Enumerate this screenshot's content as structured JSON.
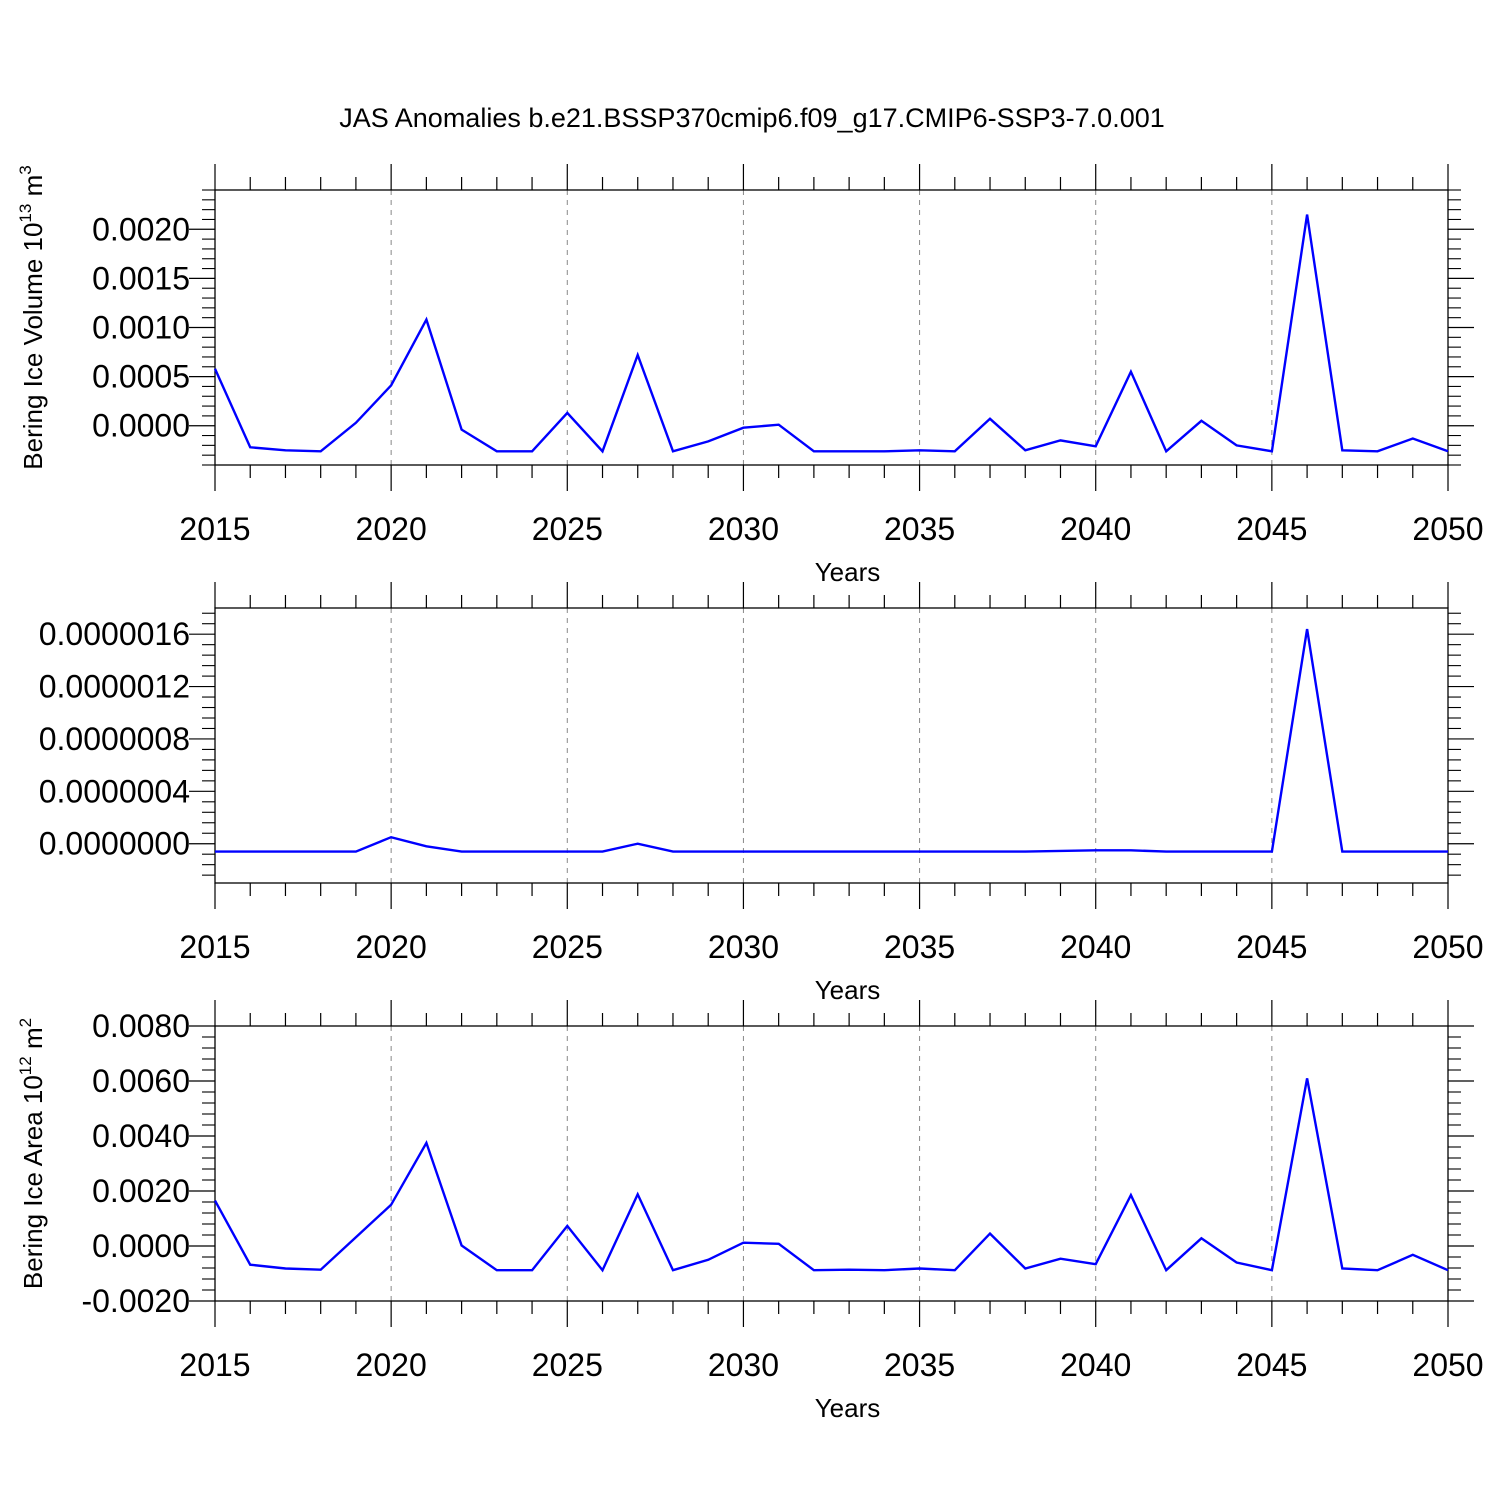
{
  "figure": {
    "title": "JAS Anomalies b.e21.BSSP370cmip6.f09_g17.CMIP6-SSP3-7.0.001"
  },
  "style": {
    "line_color": "#0000ff",
    "grid_color": "#888888",
    "axis_color": "#000000"
  },
  "chart_data": [
    {
      "type": "line",
      "xlabel": "Years",
      "ylabel": {
        "prefix": "Bering Ice Volume 10",
        "exponent": "13",
        "unit": " m",
        "unit_exponent": "3"
      },
      "xlim": [
        2015,
        2050
      ],
      "ylim": [
        -0.0004,
        0.0024
      ],
      "x_ticks": [
        2015,
        2020,
        2025,
        2030,
        2035,
        2040,
        2045,
        2050
      ],
      "x_tick_labels": [
        "2015",
        "2020",
        "2025",
        "2030",
        "2035",
        "2040",
        "2045",
        "2050"
      ],
      "y_ticks": [
        0.0,
        0.0005,
        0.001,
        0.0015,
        0.002
      ],
      "y_tick_labels": [
        "0.0000",
        "0.0005",
        "0.0010",
        "0.0015",
        "0.0020"
      ],
      "grid": "vertical dashed at major x ticks",
      "series": [
        {
          "x": [
            2015,
            2016,
            2017,
            2018,
            2019,
            2020,
            2021,
            2022,
            2023,
            2024,
            2025,
            2026,
            2027,
            2028,
            2029,
            2030,
            2031,
            2032,
            2033,
            2034,
            2035,
            2036,
            2037,
            2038,
            2039,
            2040,
            2041,
            2042,
            2043,
            2044,
            2045,
            2046,
            2047,
            2048,
            2049,
            2050
          ],
          "values": [
            0.00058,
            -0.00022,
            -0.00025,
            -0.00026,
            3e-05,
            0.00041,
            0.00108,
            -4e-05,
            -0.00026,
            -0.00026,
            0.00013,
            -0.00026,
            0.00072,
            -0.00026,
            -0.00016,
            -2e-05,
            1e-05,
            -0.00026,
            -0.00026,
            -0.00026,
            -0.00025,
            -0.00026,
            7e-05,
            -0.00025,
            -0.00015,
            -0.00021,
            0.00055,
            -0.00026,
            5e-05,
            -0.0002,
            -0.00026,
            0.00215,
            -0.00025,
            -0.00026,
            -0.00013,
            -0.00026
          ]
        }
      ]
    },
    {
      "type": "line",
      "xlabel": "Years",
      "ylabel": null,
      "xlim": [
        2015,
        2050
      ],
      "ylim": [
        -3e-07,
        1.8e-06
      ],
      "x_ticks": [
        2015,
        2020,
        2025,
        2030,
        2035,
        2040,
        2045,
        2050
      ],
      "x_tick_labels": [
        "2015",
        "2020",
        "2025",
        "2030",
        "2035",
        "2040",
        "2045",
        "2050"
      ],
      "y_ticks": [
        0.0,
        4e-07,
        8e-07,
        1.2e-06,
        1.6e-06
      ],
      "y_tick_labels": [
        "0.0000000",
        "0.0000004",
        "0.0000008",
        "0.0000012",
        "0.0000016"
      ],
      "grid": "vertical dashed at major x ticks",
      "series": [
        {
          "x": [
            2015,
            2016,
            2017,
            2018,
            2019,
            2020,
            2021,
            2022,
            2023,
            2024,
            2025,
            2026,
            2027,
            2028,
            2029,
            2030,
            2031,
            2032,
            2033,
            2034,
            2035,
            2036,
            2037,
            2038,
            2039,
            2040,
            2041,
            2042,
            2043,
            2044,
            2045,
            2046,
            2047,
            2048,
            2049,
            2050
          ],
          "values": [
            -6e-08,
            -6e-08,
            -6e-08,
            -6e-08,
            -6e-08,
            5e-08,
            -2e-08,
            -6e-08,
            -6e-08,
            -6e-08,
            -6e-08,
            -6e-08,
            0.0,
            -6e-08,
            -6e-08,
            -6e-08,
            -6e-08,
            -6e-08,
            -6e-08,
            -6e-08,
            -6e-08,
            -6e-08,
            -6e-08,
            -6e-08,
            -5.5e-08,
            -5e-08,
            -5e-08,
            -6e-08,
            -6e-08,
            -6e-08,
            -6e-08,
            1.64e-06,
            -6e-08,
            -6e-08,
            -6e-08,
            -6e-08
          ]
        }
      ]
    },
    {
      "type": "line",
      "xlabel": "Years",
      "ylabel": {
        "prefix": "Bering Ice Area 10",
        "exponent": "12",
        "unit": " m",
        "unit_exponent": "2"
      },
      "xlim": [
        2015,
        2050
      ],
      "ylim": [
        -0.002,
        0.008
      ],
      "x_ticks": [
        2015,
        2020,
        2025,
        2030,
        2035,
        2040,
        2045,
        2050
      ],
      "x_tick_labels": [
        "2015",
        "2020",
        "2025",
        "2030",
        "2035",
        "2040",
        "2045",
        "2050"
      ],
      "y_ticks": [
        -0.002,
        0.0,
        0.002,
        0.004,
        0.006,
        0.008
      ],
      "y_tick_labels": [
        "-0.0020",
        "0.0000",
        "0.0020",
        "0.0040",
        "0.0060",
        "0.0080"
      ],
      "grid": "vertical dashed at major x ticks",
      "series": [
        {
          "x": [
            2015,
            2016,
            2017,
            2018,
            2019,
            2020,
            2021,
            2022,
            2023,
            2024,
            2025,
            2026,
            2027,
            2028,
            2029,
            2030,
            2031,
            2032,
            2033,
            2034,
            2035,
            2036,
            2037,
            2038,
            2039,
            2040,
            2041,
            2042,
            2043,
            2044,
            2045,
            2046,
            2047,
            2048,
            2049,
            2050
          ],
          "values": [
            0.00165,
            -0.00068,
            -0.00082,
            -0.00086,
            0.00032,
            0.0015,
            0.00375,
            2e-05,
            -0.00088,
            -0.00088,
            0.00073,
            -0.00088,
            0.00188,
            -0.00088,
            -0.0005,
            0.00012,
            8e-05,
            -0.00088,
            -0.00086,
            -0.00088,
            -0.00082,
            -0.00088,
            0.00045,
            -0.00082,
            -0.00046,
            -0.00066,
            0.00185,
            -0.00088,
            0.00028,
            -0.0006,
            -0.00088,
            0.0061,
            -0.00082,
            -0.00088,
            -0.00032,
            -0.00088
          ]
        }
      ]
    }
  ]
}
